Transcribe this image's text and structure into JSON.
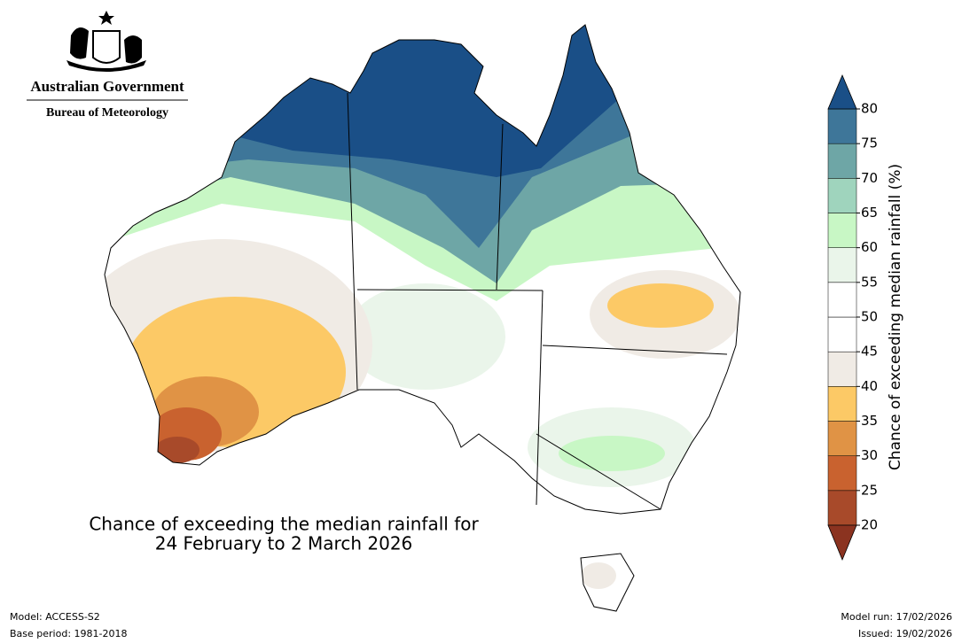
{
  "header": {
    "government": "Australian Government",
    "agency": "Bureau of Meteorology"
  },
  "map": {
    "title": [
      "Chance of exceeding the median rainfall for",
      "24 February to 2 March 2026"
    ]
  },
  "colorbar": {
    "label": "Chance of exceeding median rainfall (%)",
    "ticks": [
      20,
      25,
      30,
      35,
      40,
      45,
      50,
      55,
      60,
      65,
      70,
      75,
      80
    ],
    "colors": [
      "#a84a2a",
      "#c9622f",
      "#e09345",
      "#fcc966",
      "#f0ebe5",
      "#ffffff",
      "#ffffff",
      "#eaf5ea",
      "#c8f7c5",
      "#9fd4bd",
      "#6ea6a6",
      "#3e7699"
    ],
    "under_color": "#8b3320",
    "over_color": "#1a4f87"
  },
  "footer": {
    "model": "Model: ACCESS-S2",
    "base_period": "Base period: 1981-2018",
    "model_run": "Model run: 17/02/2026",
    "issued": "Issued: 19/02/2026"
  }
}
